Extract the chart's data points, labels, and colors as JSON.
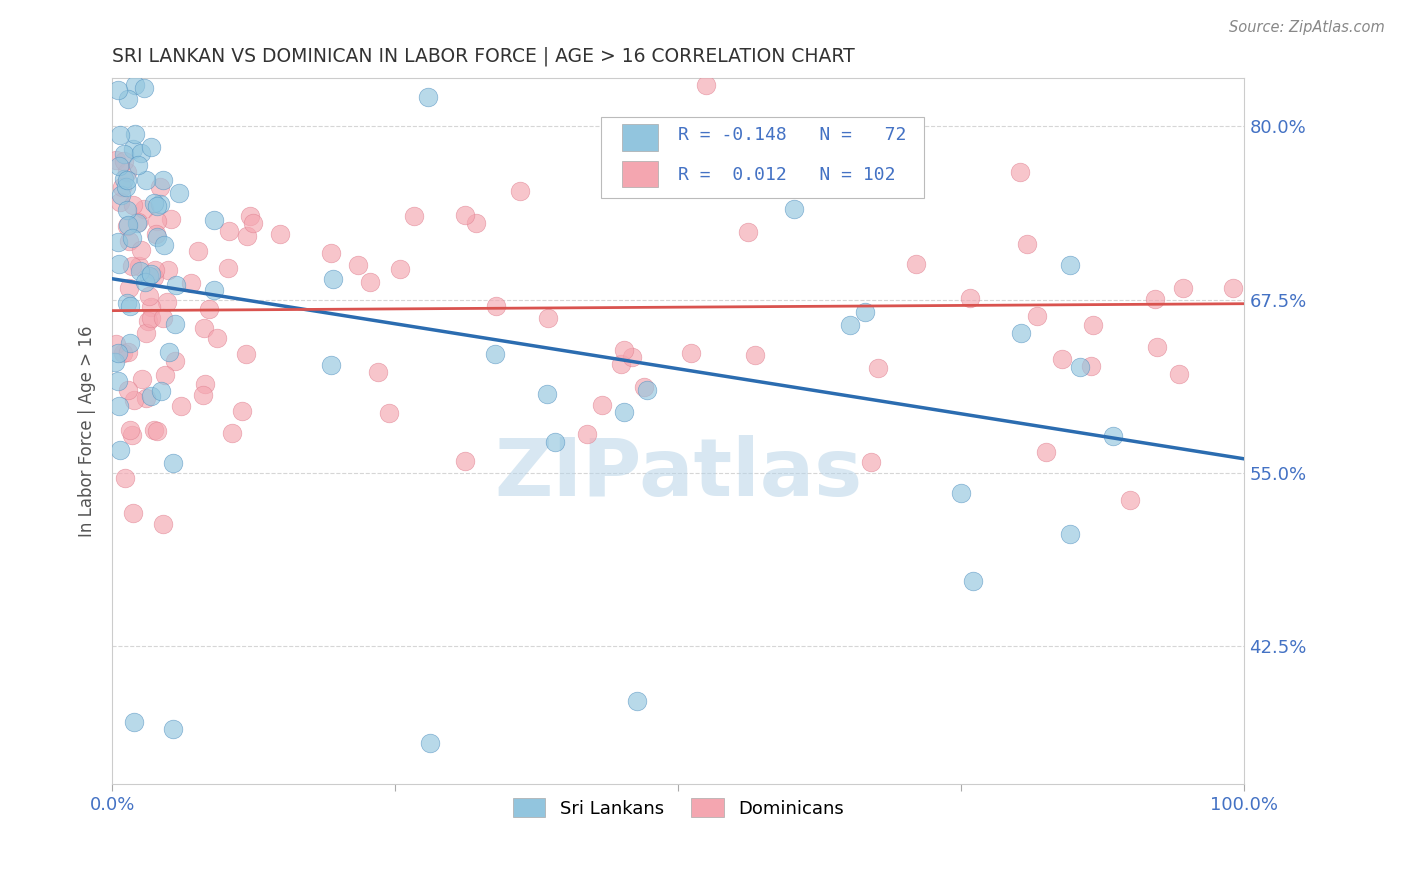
{
  "title": "SRI LANKAN VS DOMINICAN IN LABOR FORCE | AGE > 16 CORRELATION CHART",
  "source": "Source: ZipAtlas.com",
  "ylabel": "In Labor Force | Age > 16",
  "xlim": [
    0.0,
    1.0
  ],
  "ylim": [
    0.325,
    0.835
  ],
  "yticks": [
    0.425,
    0.55,
    0.675,
    0.8
  ],
  "ytick_labels": [
    "42.5%",
    "55.0%",
    "67.5%",
    "80.0%"
  ],
  "watermark": "ZIPatlas",
  "blue_R": -0.148,
  "blue_N": 72,
  "pink_R": 0.012,
  "pink_N": 102,
  "blue_color": "#92c5de",
  "pink_color": "#f4a6b0",
  "blue_line_color": "#2b6cb0",
  "pink_line_color": "#d9534f",
  "background_color": "#ffffff",
  "grid_color": "#cccccc",
  "title_color": "#333333",
  "axis_color": "#4472c4",
  "legend_R_color": "#4472c4",
  "blue_trend_start": 0.69,
  "blue_trend_end": 0.56,
  "pink_trend_start": 0.667,
  "pink_trend_end": 0.672
}
